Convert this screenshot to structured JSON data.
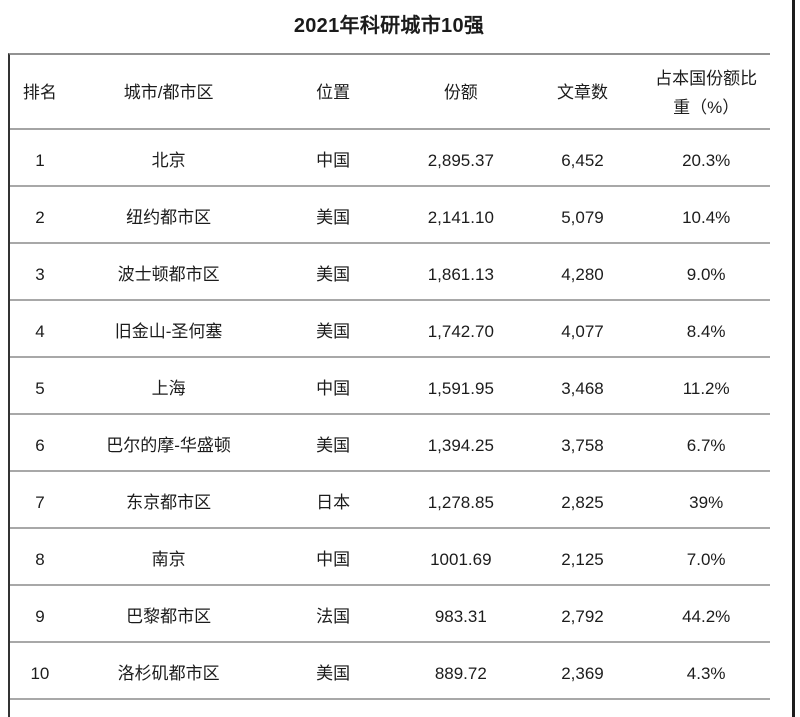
{
  "title": "2021年科研城市10强",
  "chart_data": {
    "type": "table",
    "title": "2021年科研城市10强",
    "columns": [
      "排名",
      "城市/都市区",
      "位置",
      "份额",
      "文章数",
      "占本国份额比重（%）"
    ],
    "rows": [
      [
        "1",
        "北京",
        "中国",
        "2,895.37",
        "6,452",
        "20.3%"
      ],
      [
        "2",
        "纽约都市区",
        "美国",
        "2,141.10",
        "5,079",
        "10.4%"
      ],
      [
        "3",
        "波士顿都市区",
        "美国",
        "1,861.13",
        "4,280",
        "9.0%"
      ],
      [
        "4",
        "旧金山-圣何塞",
        "美国",
        "1,742.70",
        "4,077",
        "8.4%"
      ],
      [
        "5",
        "上海",
        "中国",
        "1,591.95",
        "3,468",
        "11.2%"
      ],
      [
        "6",
        "巴尔的摩-华盛顿",
        "美国",
        "1,394.25",
        "3,758",
        "6.7%"
      ],
      [
        "7",
        "东京都市区",
        "日本",
        "1,278.85",
        "2,825",
        "39%"
      ],
      [
        "8",
        "南京",
        "中国",
        "1001.69",
        "2,125",
        "7.0%"
      ],
      [
        "9",
        "巴黎都市区",
        "法国",
        "983.31",
        "2,792",
        "44.2%"
      ],
      [
        "10",
        "洛杉矶都市区",
        "美国",
        "889.72",
        "2,369",
        "4.3%"
      ]
    ]
  },
  "colors": {
    "text": "#1c1c1c",
    "separator_line": "#a8a8a8",
    "left_border": "#333333",
    "right_edge_line": "#1c1c1c",
    "background": "#ffffff"
  }
}
